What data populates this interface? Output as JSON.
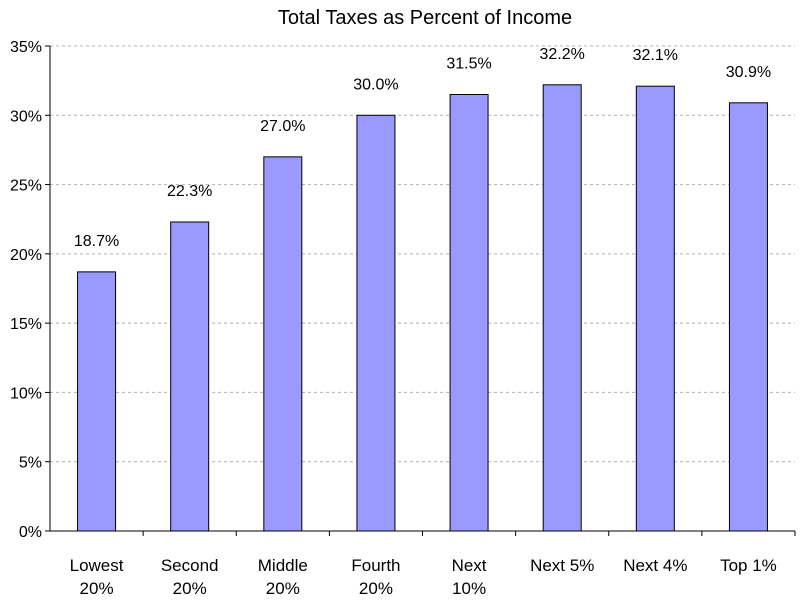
{
  "chart_data": {
    "type": "bar",
    "title": "Total Taxes as Percent of Income",
    "categories": [
      [
        "Lowest",
        "20%"
      ],
      [
        "Second",
        "20%"
      ],
      [
        "Middle",
        "20%"
      ],
      [
        "Fourth",
        "20%"
      ],
      [
        "Next",
        "10%"
      ],
      [
        "Next 5%"
      ],
      [
        "Next 4%"
      ],
      [
        "Top 1%"
      ]
    ],
    "values": [
      18.7,
      22.3,
      27.0,
      30.0,
      31.5,
      32.2,
      32.1,
      30.9
    ],
    "data_labels": [
      "18.7%",
      "22.3%",
      "27.0%",
      "30.0%",
      "31.5%",
      "32.2%",
      "32.1%",
      "30.9%"
    ],
    "ylim": [
      0,
      35
    ],
    "yticks": [
      0,
      5,
      10,
      15,
      20,
      25,
      30,
      35
    ],
    "ytick_labels": [
      "0%",
      "5%",
      "10%",
      "15%",
      "20%",
      "25%",
      "30%",
      "35%"
    ],
    "grid": true,
    "xlabel": "",
    "ylabel": "",
    "bar_color": "#9999ff",
    "bar_edge_color": "#000000"
  }
}
